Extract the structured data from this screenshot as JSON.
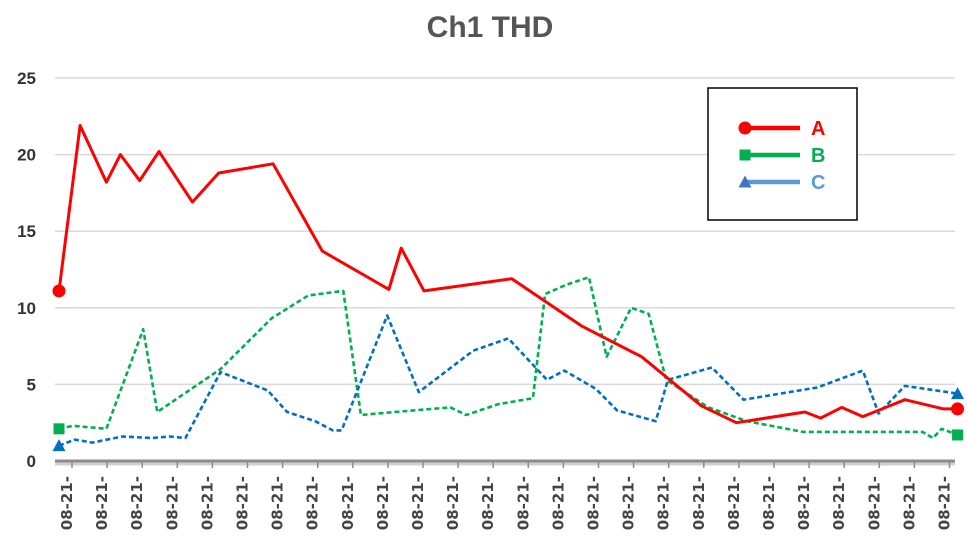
{
  "chart_data": {
    "type": "line",
    "title": "Ch1 THD",
    "xlabel": "",
    "ylabel": "",
    "ylim": [
      0,
      25
    ],
    "yticks": [
      "0",
      "5",
      "10",
      "15",
      "20",
      "25"
    ],
    "xticks": [
      "08-21-",
      "08-21-",
      "08-21-",
      "08-21-",
      "08-21-",
      "08-21-",
      "08-21-",
      "08-21-",
      "08-21-",
      "08-21-",
      "08-21-",
      "08-21-",
      "08-21-",
      "08-21-",
      "08-21-",
      "08-21-",
      "08-21-",
      "08-21-",
      "08-21-",
      "08-21-",
      "08-21-",
      "08-21-",
      "08-21-",
      "08-21-",
      "08-21-",
      "08-21-"
    ],
    "grid": true,
    "legend": "top-right",
    "series": [
      {
        "name": "A",
        "color": "#ff0000",
        "style": "solid",
        "marker": "circle",
        "points": [
          [
            0,
            11.1
          ],
          [
            0.6,
            21.9
          ],
          [
            1.35,
            18.2
          ],
          [
            1.75,
            20.0
          ],
          [
            2.3,
            18.3
          ],
          [
            2.85,
            20.2
          ],
          [
            3.8,
            16.9
          ],
          [
            4.55,
            18.8
          ],
          [
            6.1,
            19.4
          ],
          [
            7.5,
            13.7
          ],
          [
            9.4,
            11.2
          ],
          [
            9.75,
            13.9
          ],
          [
            10.4,
            11.1
          ],
          [
            12.9,
            11.9
          ],
          [
            14.9,
            8.8
          ],
          [
            16.6,
            6.8
          ],
          [
            18.3,
            3.6
          ],
          [
            19.3,
            2.5
          ],
          [
            21.25,
            3.2
          ],
          [
            21.7,
            2.8
          ],
          [
            22.3,
            3.5
          ],
          [
            22.9,
            2.9
          ],
          [
            24.1,
            4.0
          ],
          [
            25.2,
            3.4
          ],
          [
            25.6,
            3.4
          ]
        ]
      },
      {
        "name": "B",
        "color": "#00b050",
        "style": "dashed",
        "marker": "square",
        "points": [
          [
            0,
            2.1
          ],
          [
            0.4,
            2.3
          ],
          [
            1.35,
            2.1
          ],
          [
            2.4,
            8.6
          ],
          [
            2.8,
            3.2
          ],
          [
            3.7,
            4.6
          ],
          [
            4.6,
            6.0
          ],
          [
            6.05,
            9.3
          ],
          [
            7.1,
            10.8
          ],
          [
            8.1,
            11.1
          ],
          [
            8.6,
            3.0
          ],
          [
            10.1,
            3.3
          ],
          [
            11.15,
            3.5
          ],
          [
            11.6,
            3.0
          ],
          [
            12.5,
            3.7
          ],
          [
            13.5,
            4.1
          ],
          [
            13.85,
            10.9
          ],
          [
            14.45,
            11.5
          ],
          [
            15.1,
            12.0
          ],
          [
            15.6,
            6.8
          ],
          [
            16.3,
            10.0
          ],
          [
            16.8,
            9.6
          ],
          [
            17.3,
            5.3
          ],
          [
            18.5,
            3.5
          ],
          [
            19.6,
            2.6
          ],
          [
            21.2,
            1.9
          ],
          [
            22.5,
            1.9
          ],
          [
            24.6,
            1.9
          ],
          [
            24.9,
            1.5
          ],
          [
            25.15,
            2.1
          ],
          [
            25.6,
            1.7
          ]
        ]
      },
      {
        "name": "C",
        "color": "#0070c0",
        "style": "dashed",
        "marker": "triangle",
        "points": [
          [
            0,
            1.0
          ],
          [
            0.45,
            1.4
          ],
          [
            0.95,
            1.2
          ],
          [
            1.8,
            1.6
          ],
          [
            2.65,
            1.5
          ],
          [
            3.15,
            1.6
          ],
          [
            3.6,
            1.5
          ],
          [
            4.6,
            5.8
          ],
          [
            5.95,
            4.6
          ],
          [
            6.5,
            3.2
          ],
          [
            7.3,
            2.6
          ],
          [
            7.8,
            2.0
          ],
          [
            8.05,
            2.0
          ],
          [
            9.35,
            9.5
          ],
          [
            10.25,
            4.5
          ],
          [
            11.8,
            7.2
          ],
          [
            12.8,
            8.0
          ],
          [
            13.9,
            5.3
          ],
          [
            14.4,
            5.9
          ],
          [
            15.3,
            4.7
          ],
          [
            15.9,
            3.3
          ],
          [
            17.0,
            2.6
          ],
          [
            17.35,
            5.3
          ],
          [
            18.6,
            6.1
          ],
          [
            19.5,
            4.0
          ],
          [
            21.6,
            4.8
          ],
          [
            22.9,
            5.9
          ],
          [
            23.35,
            3.1
          ],
          [
            24.1,
            4.9
          ],
          [
            25.6,
            4.4
          ]
        ]
      }
    ]
  }
}
